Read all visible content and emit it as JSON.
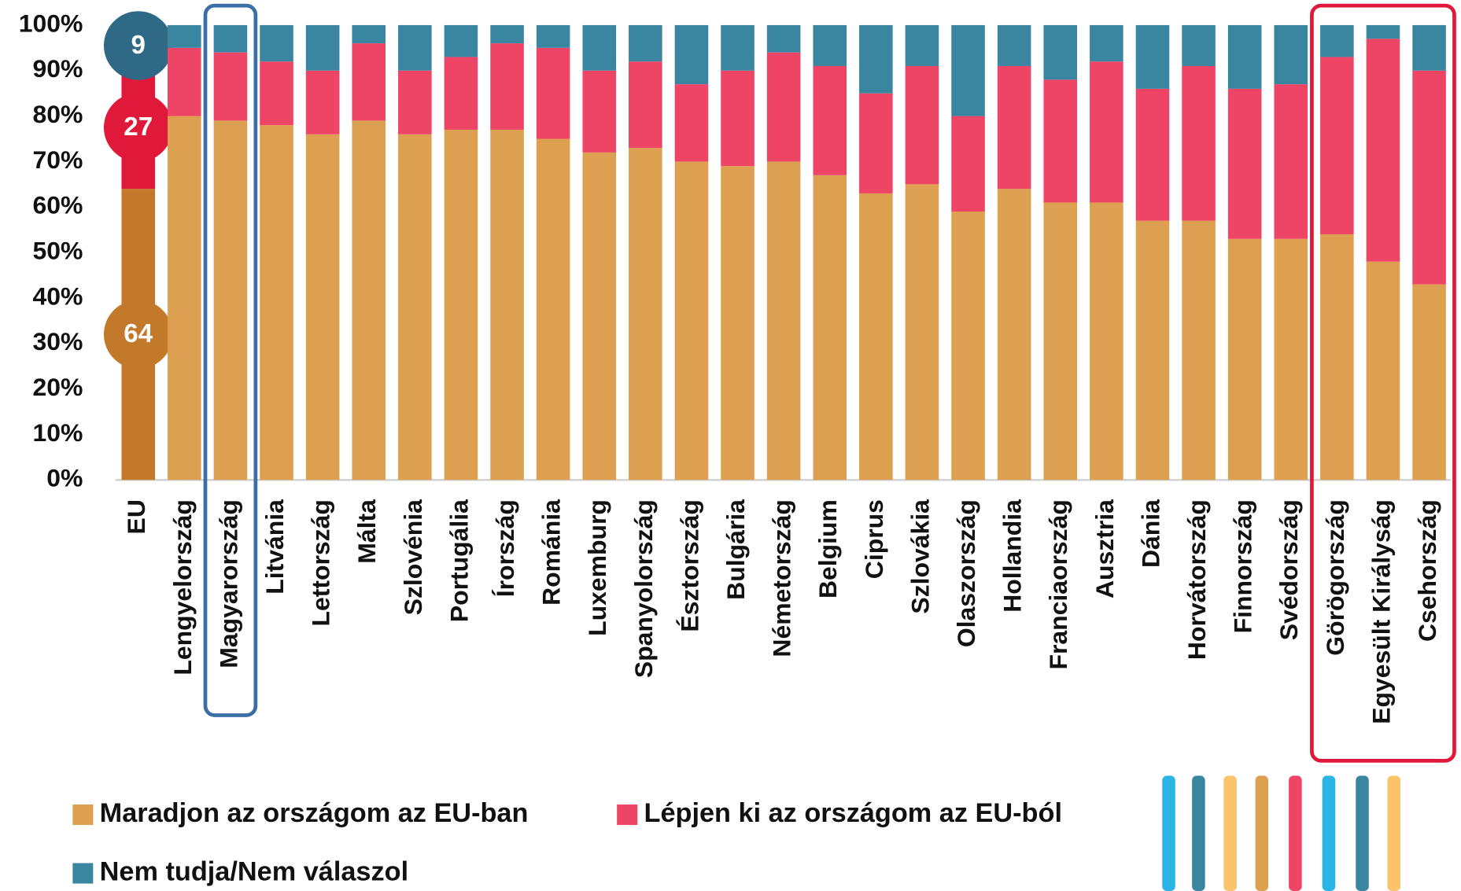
{
  "chart_data": {
    "type": "stacked_bar",
    "categories": [
      "EU",
      "Lengyelország",
      "Magyarország",
      "Litvánia",
      "Lettország",
      "Málta",
      "Szlovénia",
      "Portugália",
      "Írország",
      "Románia",
      "Luxemburg",
      "Spanyolország",
      "Észtország",
      "Bulgária",
      "Németország",
      "Belgium",
      "Ciprus",
      "Szlovákia",
      "Olaszország",
      "Hollandia",
      "Franciaország",
      "Ausztria",
      "Dánia",
      "Horvátország",
      "Finnország",
      "Svédország",
      "Görögország",
      "Egyesült Királyság",
      "Csehország"
    ],
    "series": [
      {
        "name": "Maradjon az országom az EU-ban",
        "color": "#dda050",
        "first_color": "#c27a2a",
        "values": [
          64,
          80,
          79,
          78,
          76,
          79,
          76,
          77,
          77,
          75,
          72,
          73,
          70,
          69,
          70,
          67,
          63,
          65,
          59,
          64,
          61,
          61,
          57,
          57,
          53,
          53,
          54,
          48,
          43
        ]
      },
      {
        "name": "Lépjen ki az országom az EU-ból",
        "color": "#ee4466",
        "first_color": "#e0193a",
        "values": [
          27,
          15,
          15,
          14,
          14,
          17,
          14,
          16,
          19,
          20,
          18,
          19,
          17,
          21,
          24,
          24,
          22,
          26,
          21,
          27,
          27,
          31,
          29,
          34,
          33,
          34,
          39,
          49,
          47
        ]
      },
      {
        "name": "Nem tudja/Nem válaszol",
        "color": "#3a86a0",
        "first_color": "#2e6a85",
        "values": [
          9,
          5,
          6,
          8,
          10,
          4,
          10,
          7,
          4,
          5,
          10,
          8,
          13,
          10,
          6,
          9,
          15,
          9,
          20,
          9,
          12,
          8,
          14,
          9,
          14,
          13,
          7,
          3,
          10
        ]
      }
    ],
    "ylim": [
      0,
      100
    ],
    "yticks": [
      {
        "value": 0,
        "label": "0%"
      },
      {
        "value": 10,
        "label": "10%"
      },
      {
        "value": 20,
        "label": "20%"
      },
      {
        "value": 30,
        "label": "30%"
      },
      {
        "value": 40,
        "label": "40%"
      },
      {
        "value": 50,
        "label": "50%"
      },
      {
        "value": 60,
        "label": "60%"
      },
      {
        "value": 70,
        "label": "70%"
      },
      {
        "value": 80,
        "label": "80%"
      },
      {
        "value": 90,
        "label": "90%"
      },
      {
        "value": 100,
        "label": "100%"
      }
    ],
    "grid": false
  }
}
